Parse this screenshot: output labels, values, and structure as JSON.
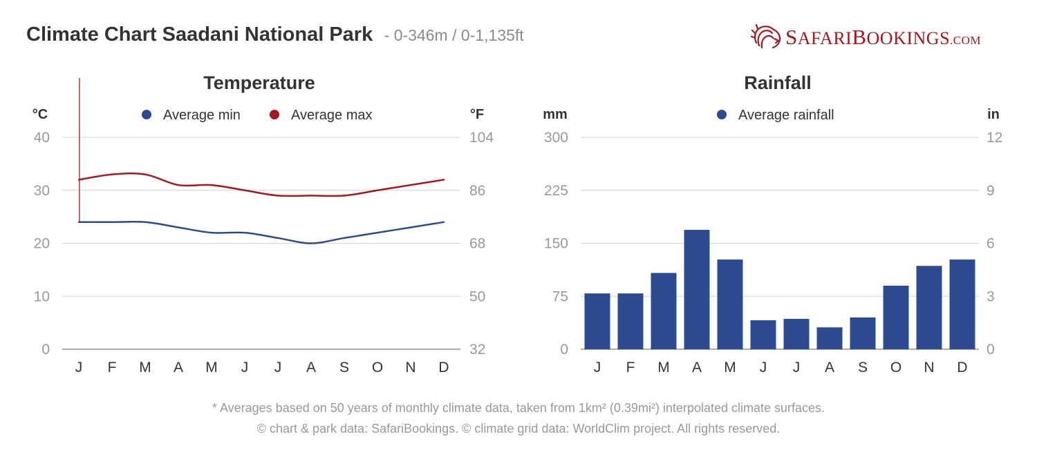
{
  "header": {
    "title": "Climate Chart Saadani National Park",
    "subtitle": "- 0-346m / 0-1,135ft"
  },
  "logo": {
    "brand": "SafariBookings.com",
    "part1_initial": "S",
    "part1_rest": "AFARI",
    "part2_initial": "B",
    "part2_rest": "OOKINGS",
    "domain": ".COM",
    "brand_color": "#a7151e"
  },
  "colors": {
    "min": "#2b4a8f",
    "max": "#a7151e",
    "bar": "#2b4a8f",
    "grid": "#d4d4d4",
    "tick": "#999999",
    "label": "#333333"
  },
  "chart_data": [
    {
      "type": "line",
      "title": "Temperature",
      "ylabel_left": "°C",
      "ylabel_right": "°F",
      "categories": [
        "J",
        "F",
        "M",
        "A",
        "M",
        "J",
        "J",
        "A",
        "S",
        "O",
        "N",
        "D"
      ],
      "yticks_left": [
        0,
        10,
        20,
        30,
        40
      ],
      "yticks_right": [
        32,
        50,
        68,
        86,
        104
      ],
      "ylim": [
        0,
        40
      ],
      "legend_position": "top-center",
      "grid": true,
      "series": [
        {
          "name": "Average min",
          "values": [
            24,
            24,
            24,
            23,
            22,
            22,
            21,
            20,
            21,
            22,
            23,
            24
          ]
        },
        {
          "name": "Average max",
          "values": [
            32,
            33,
            33,
            31,
            31,
            30,
            29,
            29,
            29,
            30,
            31,
            32
          ]
        }
      ]
    },
    {
      "type": "bar",
      "title": "Rainfall",
      "ylabel_left": "mm",
      "ylabel_right": "in",
      "categories": [
        "J",
        "F",
        "M",
        "A",
        "M",
        "J",
        "J",
        "A",
        "S",
        "O",
        "N",
        "D"
      ],
      "yticks_left": [
        0,
        75,
        150,
        225,
        300
      ],
      "yticks_right": [
        0,
        3,
        6,
        9,
        12
      ],
      "ylim": [
        0,
        300
      ],
      "legend_position": "top-center",
      "grid": true,
      "series": [
        {
          "name": "Average rainfall",
          "values": [
            79,
            79,
            108,
            169,
            127,
            41,
            43,
            31,
            45,
            90,
            118,
            127
          ]
        }
      ]
    }
  ],
  "footer": {
    "line1": "* Averages based on 50 years of monthly climate data, taken from 1km² (0.39mi²) interpolated climate surfaces.",
    "line2": "© chart & park data: SafariBookings. © climate grid data: WorldClim project. All rights reserved."
  }
}
